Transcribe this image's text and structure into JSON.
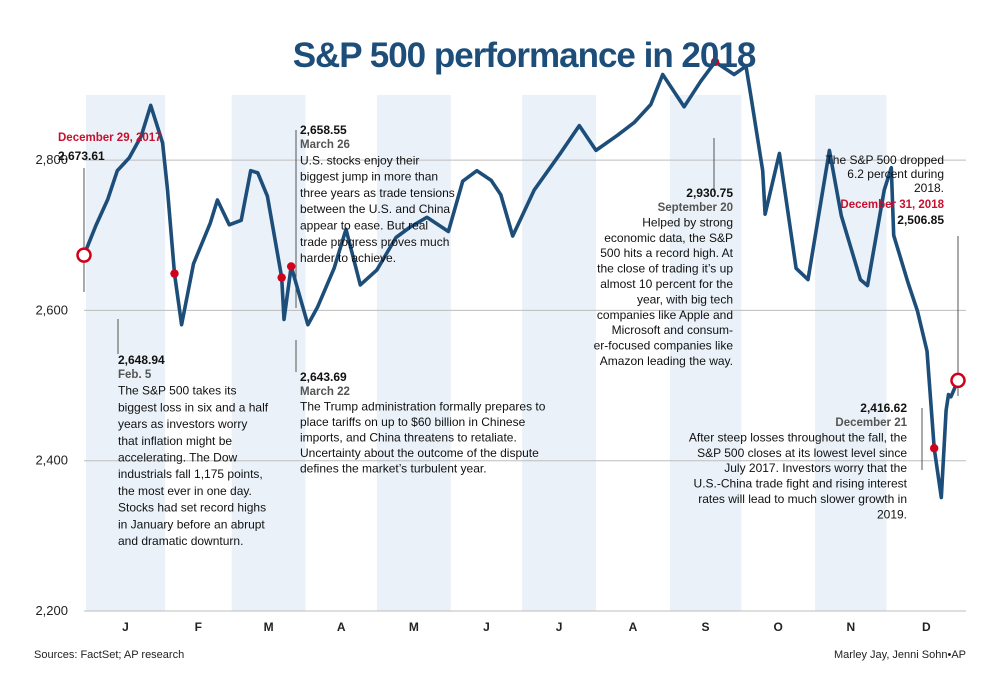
{
  "title": "S&P 500 performance in 2018",
  "colors": {
    "line": "#1d4e7a",
    "band": "#eaf1f8",
    "grid": "#bdbdbd",
    "marker": "#d0021b",
    "title": "#1d4e7a",
    "red_text": "#c8102e"
  },
  "chart_data": {
    "type": "line",
    "title": "S&P 500 performance in 2018",
    "xlabel": "",
    "ylabel": "",
    "ylim": [
      2200,
      2900
    ],
    "yticks": [
      2200,
      2400,
      2600,
      2800
    ],
    "ytick_labels": [
      "2,200",
      "2,400",
      "2,600",
      "2,800"
    ],
    "month_labels": [
      "J",
      "F",
      "M",
      "A",
      "M",
      "J",
      "J",
      "A",
      "S",
      "O",
      "N",
      "D"
    ],
    "xlim": [
      "2017-12-29",
      "2018-12-31"
    ],
    "grid": true,
    "series": [
      {
        "points": [
          [
            "2017-12-29",
            2673.61
          ],
          [
            "2018-01-03",
            2713
          ],
          [
            "2018-01-08",
            2748
          ],
          [
            "2018-01-12",
            2786
          ],
          [
            "2018-01-17",
            2803
          ],
          [
            "2018-01-22",
            2832
          ],
          [
            "2018-01-26",
            2872.87
          ],
          [
            "2018-01-31",
            2823
          ],
          [
            "2018-02-02",
            2762
          ],
          [
            "2018-02-05",
            2648.94
          ],
          [
            "2018-02-08",
            2581
          ],
          [
            "2018-02-13",
            2662
          ],
          [
            "2018-02-20",
            2716
          ],
          [
            "2018-02-23",
            2747
          ],
          [
            "2018-02-28",
            2714
          ],
          [
            "2018-03-05",
            2720
          ],
          [
            "2018-03-09",
            2786
          ],
          [
            "2018-03-12",
            2783
          ],
          [
            "2018-03-16",
            2752
          ],
          [
            "2018-03-22",
            2643.69
          ],
          [
            "2018-03-23",
            2588
          ],
          [
            "2018-03-26",
            2658.55
          ],
          [
            "2018-04-02",
            2581
          ],
          [
            "2018-04-06",
            2604
          ],
          [
            "2018-04-13",
            2656
          ],
          [
            "2018-04-18",
            2708
          ],
          [
            "2018-04-24",
            2634
          ],
          [
            "2018-05-01",
            2654
          ],
          [
            "2018-05-09",
            2697
          ],
          [
            "2018-05-15",
            2711
          ],
          [
            "2018-05-22",
            2724
          ],
          [
            "2018-05-31",
            2705
          ],
          [
            "2018-06-06",
            2772
          ],
          [
            "2018-06-12",
            2786
          ],
          [
            "2018-06-18",
            2773
          ],
          [
            "2018-06-22",
            2754
          ],
          [
            "2018-06-27",
            2699
          ],
          [
            "2018-07-06",
            2760
          ],
          [
            "2018-07-17",
            2809
          ],
          [
            "2018-07-25",
            2846
          ],
          [
            "2018-08-01",
            2813
          ],
          [
            "2018-08-10",
            2833
          ],
          [
            "2018-08-17",
            2850
          ],
          [
            "2018-08-24",
            2874
          ],
          [
            "2018-08-29",
            2914
          ],
          [
            "2018-09-07",
            2871
          ],
          [
            "2018-09-14",
            2905
          ],
          [
            "2018-09-20",
            2930.75
          ],
          [
            "2018-09-28",
            2914
          ],
          [
            "2018-10-03",
            2925
          ],
          [
            "2018-10-05",
            2886
          ],
          [
            "2018-10-10",
            2786
          ],
          [
            "2018-10-11",
            2728
          ],
          [
            "2018-10-17",
            2809
          ],
          [
            "2018-10-24",
            2656
          ],
          [
            "2018-10-29",
            2641
          ],
          [
            "2018-11-07",
            2813
          ],
          [
            "2018-11-12",
            2726
          ],
          [
            "2018-11-20",
            2641
          ],
          [
            "2018-11-23",
            2633
          ],
          [
            "2018-11-30",
            2760
          ],
          [
            "2018-12-03",
            2790
          ],
          [
            "2018-12-04",
            2700
          ],
          [
            "2018-12-10",
            2637
          ],
          [
            "2018-12-14",
            2599
          ],
          [
            "2018-12-18",
            2546
          ],
          [
            "2018-12-21",
            2416.62
          ],
          [
            "2018-12-24",
            2351.1
          ],
          [
            "2018-12-26",
            2467
          ],
          [
            "2018-12-27",
            2488
          ],
          [
            "2018-12-28",
            2485
          ],
          [
            "2018-12-31",
            2506.85
          ]
        ]
      }
    ]
  },
  "annotations": [
    {
      "id": "dec29",
      "marker": "ring",
      "date": "2017-12-29",
      "value": 2673.61,
      "date_label": "December 29, 2017",
      "value_label": "2,673.61",
      "lines": []
    },
    {
      "id": "feb5",
      "marker": "dot",
      "date": "2018-02-05",
      "value": 2648.94,
      "value_label": "2,648.94",
      "date_label": "Feb. 5",
      "lines": [
        "The S&P 500 takes its",
        "biggest loss in six and a half",
        "years as investors worry",
        "that inflation might be",
        "accelerating. The Dow",
        "industrials fall 1,175 points,",
        "the most ever in one day.",
        "Stocks had set record highs",
        "in January before an abrupt",
        "and dramatic downturn."
      ]
    },
    {
      "id": "mar26",
      "marker": "dot",
      "date": "2018-03-26",
      "value": 2658.55,
      "value_label": "2,658.55",
      "date_label": "March 26",
      "lines": [
        "U.S. stocks enjoy their",
        "biggest jump in more than",
        "three years as trade tensions",
        "between the U.S. and China",
        "appear to ease. But real",
        "trade progress proves much",
        "harder to achieve."
      ]
    },
    {
      "id": "mar22",
      "marker": "dot",
      "date": "2018-03-22",
      "value": 2643.69,
      "value_label": "2,643.69",
      "date_label": "March 22",
      "lines": [
        "The Trump administration formally prepares to",
        "place tariffs on up to $60 billion in Chinese",
        "imports, and China threatens to retaliate.",
        "Uncertainty about the outcome of the dispute",
        "defines the market’s turbulent year."
      ]
    },
    {
      "id": "sep20",
      "marker": "dot",
      "date": "2018-09-20",
      "value": 2930.75,
      "value_label": "2,930.75",
      "date_label": "September 20",
      "lines": [
        "Helped by strong",
        "economic data, the S&P",
        "500 hits a record high. At",
        "the close of trading it’s up",
        "almost 10 percent for the",
        "year, with big tech",
        "companies like Apple and",
        "Microsoft and consum-",
        "er-focused companies like",
        "Amazon leading the way."
      ]
    },
    {
      "id": "dec21",
      "marker": "dot",
      "date": "2018-12-21",
      "value": 2416.62,
      "value_label": "2,416.62",
      "date_label": "December 21",
      "lines": [
        "After steep losses throughout the fall, the",
        "S&P 500 closes at its lowest level since",
        "July 2017. Investors worry that the",
        "U.S.-China trade fight and rising interest",
        "rates will lead to much slower growth in",
        "2019."
      ]
    },
    {
      "id": "dec31",
      "marker": "ring",
      "date": "2018-12-31",
      "value": 2506.85,
      "date_label": "December 31, 2018",
      "value_label": "2,506.85",
      "lines": [
        "The S&P 500 dropped",
        "6.2 percent during",
        "2018."
      ]
    }
  ],
  "footer": {
    "sources": "Sources: FactSet; AP research",
    "credit": "Marley Jay, Jenni Sohn•AP"
  }
}
